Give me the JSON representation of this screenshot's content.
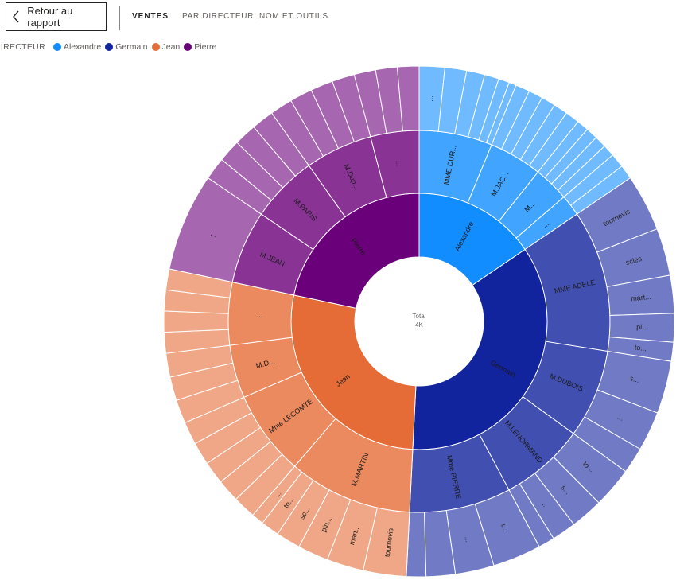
{
  "header": {
    "back_label": "Retour au rapport",
    "title": "VENTES",
    "subtitle": "PAR DIRECTEUR, NOM ET OUTILS"
  },
  "legend": {
    "title": "DIRECTEUR",
    "items": [
      {
        "label": "Alexandre",
        "color": "#118DFF"
      },
      {
        "label": "Germain",
        "color": "#12239E"
      },
      {
        "label": "Jean",
        "color": "#E66C37"
      },
      {
        "label": "Pierre",
        "color": "#6B007B"
      }
    ]
  },
  "chart_data": {
    "type": "sunburst",
    "center_label": "Total",
    "center_value": "4K",
    "levels": [
      "DIRECTEUR",
      "NOM",
      "OUTILS"
    ],
    "series": [
      {
        "name": "Alexandre",
        "value": 0.155,
        "label": "Alexandre",
        "children": [
          {
            "label": "MME DUR...",
            "value": 0.062,
            "leaf_count": 6,
            "leaf_labels": [
              "..."
            ]
          },
          {
            "label": "M.JAC...",
            "value": 0.045,
            "leaf_count": 5
          },
          {
            "label": "M...",
            "value": 0.03,
            "leaf_count": 4
          },
          {
            "label": "...",
            "value": 0.018,
            "leaf_count": 2
          }
        ]
      },
      {
        "name": "Germain",
        "value": 0.353,
        "label": "Germain",
        "children": [
          {
            "label": "MME ADELE",
            "value": 0.12,
            "leaf_labels": [
              "tournevis",
              "scies",
              "mart...",
              "pi...",
              "to..."
            ]
          },
          {
            "label": "M.DUBOIS",
            "value": 0.075,
            "leaf_labels": [
              "s...",
              "...",
              ""
            ]
          },
          {
            "label": "M.LENORMAND",
            "value": 0.072,
            "leaf_labels": [
              "to...",
              "s...",
              "...",
              ""
            ]
          },
          {
            "label": "Mme PIERRE",
            "value": 0.086,
            "leaf_labels": [
              "t...",
              "...",
              "",
              ""
            ]
          }
        ]
      },
      {
        "name": "Jean",
        "value": 0.275,
        "label": "Jean",
        "children": [
          {
            "label": "M.MARTIN",
            "value": 0.105,
            "leaf_labels": [
              "tournevis",
              "mart...",
              "pin...",
              "sc...",
              "to...",
              "..."
            ]
          },
          {
            "label": "Mme LECOMTE",
            "value": 0.072
          },
          {
            "label": "M.D...",
            "value": 0.045
          },
          {
            "label": "...",
            "value": 0.053
          }
        ]
      },
      {
        "name": "Pierre",
        "value": 0.217,
        "label": "Pierre",
        "children": [
          {
            "label": "M.JEAN",
            "value": 0.062,
            "leaf_labels": [
              "..."
            ]
          },
          {
            "label": "M.PARIS",
            "value": 0.057
          },
          {
            "label": "M.Dup...",
            "value": 0.057
          },
          {
            "label": "...",
            "value": 0.041
          }
        ]
      }
    ]
  }
}
